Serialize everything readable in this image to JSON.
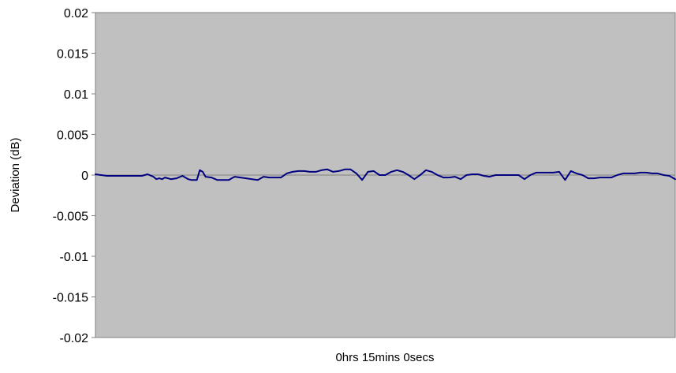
{
  "chart_data": {
    "type": "line",
    "title": "",
    "xlabel": "0hrs 15mins 0secs",
    "ylabel": "Deviation (dB)",
    "ylim": [
      -0.02,
      0.02
    ],
    "yticks": [
      "0.02",
      "0.015",
      "0.01",
      "0.005",
      "0",
      "-0.005",
      "-0.01",
      "-0.015",
      "-0.02"
    ],
    "grid": false,
    "legend": "none",
    "plot_background": "#c0c0c0",
    "zero_line_color": "#808080",
    "series": [
      {
        "color": "#000080",
        "x": [
          0,
          0.01,
          0.02,
          0.03,
          0.04,
          0.05,
          0.06,
          0.07,
          0.08,
          0.09,
          0.1,
          0.105,
          0.11,
          0.115,
          0.12,
          0.125,
          0.13,
          0.14,
          0.15,
          0.16,
          0.165,
          0.17,
          0.175,
          0.18,
          0.185,
          0.19,
          0.2,
          0.21,
          0.22,
          0.225,
          0.23,
          0.235,
          0.24,
          0.25,
          0.26,
          0.27,
          0.28,
          0.29,
          0.3,
          0.31,
          0.32,
          0.33,
          0.34,
          0.35,
          0.36,
          0.37,
          0.38,
          0.39,
          0.4,
          0.41,
          0.42,
          0.43,
          0.44,
          0.45,
          0.46,
          0.47,
          0.48,
          0.49,
          0.5,
          0.51,
          0.52,
          0.53,
          0.54,
          0.55,
          0.56,
          0.57,
          0.58,
          0.59,
          0.6,
          0.61,
          0.62,
          0.63,
          0.64,
          0.65,
          0.66,
          0.67,
          0.68,
          0.69,
          0.7,
          0.71,
          0.72,
          0.73,
          0.74,
          0.75,
          0.76,
          0.77,
          0.78,
          0.79,
          0.8,
          0.81,
          0.82,
          0.83,
          0.84,
          0.85,
          0.86,
          0.87,
          0.88,
          0.89,
          0.9,
          0.91,
          0.92,
          0.93,
          0.94,
          0.95,
          0.96,
          0.97,
          0.98,
          0.99,
          1.0
        ],
        "y": [
          0.0001,
          0.0,
          -0.0001,
          -0.0001,
          -0.0001,
          -0.0001,
          -0.0001,
          -0.0001,
          -0.0001,
          0.0001,
          -0.0002,
          -0.0005,
          -0.0004,
          -0.0005,
          -0.0003,
          -0.0004,
          -0.0005,
          -0.0004,
          -0.0001,
          -0.0005,
          -0.0006,
          -0.0006,
          -0.0006,
          0.0006,
          0.0004,
          -0.0002,
          -0.0003,
          -0.0006,
          -0.0006,
          -0.0006,
          -0.0006,
          -0.0004,
          -0.0002,
          -0.0003,
          -0.0004,
          -0.0005,
          -0.0006,
          -0.0002,
          -0.0003,
          -0.0003,
          -0.0003,
          0.0002,
          0.0004,
          0.0005,
          0.0005,
          0.0004,
          0.0004,
          0.0006,
          0.0007,
          0.0004,
          0.0005,
          0.0007,
          0.0007,
          0.0002,
          -0.0006,
          0.0004,
          0.0005,
          0.0,
          0.0,
          0.0004,
          0.0006,
          0.0004,
          0.0,
          -0.0005,
          0.0,
          0.0006,
          0.0004,
          0.0,
          -0.0003,
          -0.0003,
          -0.0002,
          -0.0005,
          0.0,
          0.0001,
          0.0001,
          -0.0001,
          -0.0002,
          0.0,
          0.0,
          0.0,
          0.0,
          0.0,
          -0.0005,
          0.0,
          0.0003,
          0.0003,
          0.0003,
          0.0003,
          0.0004,
          -0.0006,
          0.0005,
          0.0002,
          0.0,
          -0.0004,
          -0.0004,
          -0.0003,
          -0.0003,
          -0.0003,
          0.0,
          0.0002,
          0.0002,
          0.0002,
          0.0003,
          0.0003,
          0.0002,
          0.0002,
          0.0,
          -0.0001,
          -0.0005
        ]
      }
    ]
  }
}
